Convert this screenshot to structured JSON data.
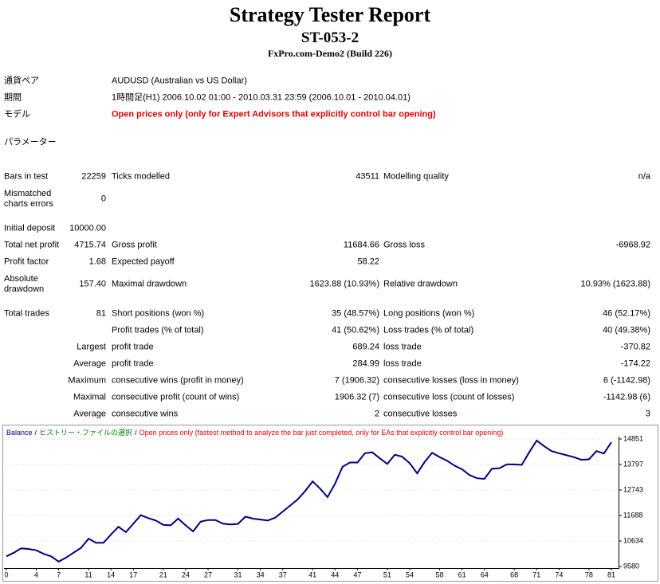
{
  "header": {
    "title": "Strategy Tester Report",
    "subtitle": "ST-053-2",
    "server": "FxPro.com-Demo2 (Build 226)"
  },
  "settings": [
    {
      "label": "通貨ペア",
      "value": "AUDUSD (Australian vs US Dollar)"
    },
    {
      "label": "期間",
      "value": "1時間足(H1) 2006.10.02 01:00 - 2010.03.31 23:59 (2006.10.01 - 2010.04.01)"
    },
    {
      "label": "モデル",
      "value": "Open prices only (only for Expert Advisors that explicitly control bar opening)"
    },
    {
      "label": "パラメーター"
    }
  ],
  "stats": [
    [
      "Bars in test",
      "22259",
      "Ticks modelled",
      "43511",
      "Modelling quality",
      "n/a"
    ],
    [
      "Mismatched charts errors",
      "0",
      null,
      null,
      null,
      null
    ],
    [
      "Initial deposit",
      "10000.00",
      null,
      null,
      null,
      null
    ],
    [
      "Total net profit",
      "4715.74",
      "Gross profit",
      "11684.66",
      "Gross loss",
      "-6968.92"
    ],
    [
      "Profit factor",
      "1.68",
      "Expected payoff",
      "58.22",
      null,
      null
    ],
    [
      "Absolute drawdown",
      "157.40",
      "Maximal drawdown",
      "1623.88 (10.93%)",
      "Relative drawdown",
      "10.93% (1623.88)"
    ],
    [
      "Total trades",
      "81",
      "Short positions (won %)",
      "35 (48.57%)",
      "Long positions (won %)",
      "46 (52.17%)"
    ],
    [
      null,
      null,
      "Profit trades (% of total)",
      "41 (50.62%)",
      "Loss trades (% of total)",
      "40 (49.38%)"
    ],
    [
      null,
      "Largest",
      "profit trade",
      "689.24",
      "loss trade",
      "-370.82"
    ],
    [
      null,
      "Average",
      "profit trade",
      "284.99",
      "loss trade",
      "-174.22"
    ],
    [
      null,
      "Maximum",
      "consecutive wins (profit in money)",
      "7 (1906.32)",
      "consecutive losses (loss in money)",
      "6 (-1142.98)"
    ],
    [
      null,
      "Maximal",
      "consecutive profit (count of wins)",
      "1906.32 (7)",
      "consecutive loss (count of losses)",
      "-1142.98 (6)"
    ],
    [
      null,
      "Average",
      "consecutive wins",
      "2",
      "consecutive losses",
      "3"
    ]
  ],
  "chart_data": {
    "type": "line",
    "legend_separator": "/",
    "history_label": "ヒストリー・ファイルの選択",
    "model_label": "Open prices only (fastest method to analyze the bar just completed, only for EAs that explicitly control bar opening)",
    "x": [
      0,
      1,
      2,
      3,
      4,
      5,
      6,
      7,
      8,
      9,
      10,
      11,
      12,
      13,
      14,
      15,
      16,
      17,
      18,
      19,
      20,
      21,
      22,
      23,
      24,
      25,
      26,
      27,
      28,
      29,
      30,
      31,
      32,
      33,
      34,
      35,
      36,
      37,
      38,
      39,
      40,
      41,
      42,
      43,
      44,
      45,
      46,
      47,
      48,
      49,
      50,
      51,
      52,
      53,
      54,
      55,
      56,
      57,
      58,
      59,
      60,
      61,
      62,
      63,
      64,
      65,
      66,
      67,
      68,
      69,
      70,
      71,
      72,
      73,
      74,
      75,
      76,
      77,
      78,
      79,
      80,
      81
    ],
    "series": [
      {
        "name": "Balance",
        "color": "#000080",
        "values": [
          10000,
          10150,
          10330,
          10300,
          10250,
          10100,
          10000,
          9780,
          9950,
          10150,
          10350,
          10730,
          10560,
          10560,
          10900,
          11220,
          11000,
          11350,
          11700,
          11580,
          11480,
          11300,
          11280,
          11560,
          11280,
          11030,
          11430,
          11500,
          11500,
          11350,
          11320,
          11340,
          11640,
          11560,
          11520,
          11480,
          11600,
          11850,
          12100,
          12350,
          12700,
          13100,
          12800,
          12450,
          13000,
          13700,
          13880,
          13880,
          14260,
          14300,
          14050,
          13820,
          14200,
          14120,
          13850,
          13430,
          13900,
          14280,
          14100,
          13950,
          13750,
          13600,
          13360,
          13230,
          13200,
          13620,
          13640,
          13800,
          13800,
          13780,
          14300,
          14790,
          14550,
          14350,
          14260,
          14180,
          14100,
          13990,
          14010,
          14350,
          14250,
          14716
        ]
      }
    ],
    "xlim": [
      0,
      81
    ],
    "xticks": [
      0,
      4,
      7,
      11,
      14,
      17,
      21,
      24,
      27,
      31,
      34,
      37,
      41,
      44,
      47,
      51,
      54,
      58,
      61,
      64,
      68,
      71,
      74,
      78,
      81
    ],
    "ylim": [
      9580,
      14851
    ],
    "yticks": [
      9580,
      10634,
      11688,
      12743,
      13797,
      14851
    ],
    "grid": true
  }
}
